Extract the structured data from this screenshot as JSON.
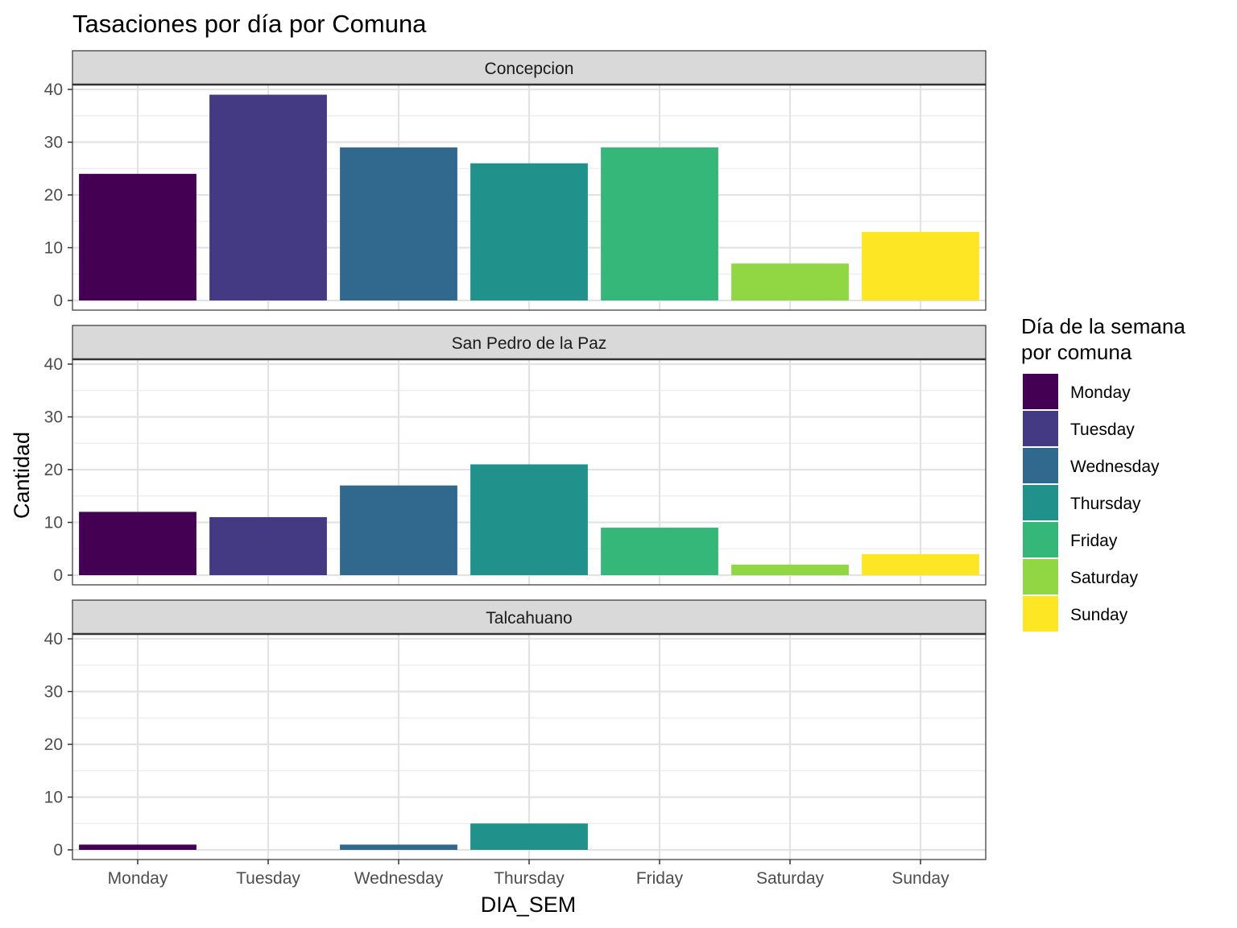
{
  "chart_data": {
    "type": "bar",
    "title": "Tasaciones por día por Comuna",
    "xlabel": "DIA_SEM",
    "ylabel": "Cantidad",
    "ylim": [
      0,
      40
    ],
    "yticks": [
      0,
      10,
      20,
      30,
      40
    ],
    "grid": true,
    "categories": [
      "Monday",
      "Tuesday",
      "Wednesday",
      "Thursday",
      "Friday",
      "Saturday",
      "Sunday"
    ],
    "colors": [
      "#440154",
      "#443983",
      "#31688e",
      "#21918c",
      "#35b779",
      "#90d743",
      "#fde725"
    ],
    "legend": {
      "title_line1": "Día de la semana",
      "title_line2": "por comuna",
      "position": "right"
    },
    "facets": [
      {
        "name": "Concepcion",
        "values": [
          24,
          39,
          29,
          26,
          29,
          7,
          13
        ]
      },
      {
        "name": "San Pedro de la Paz",
        "values": [
          12,
          11,
          17,
          21,
          9,
          2,
          4
        ]
      },
      {
        "name": "Talcahuano",
        "values": [
          1,
          0,
          1,
          5,
          0,
          0,
          0
        ]
      }
    ]
  }
}
